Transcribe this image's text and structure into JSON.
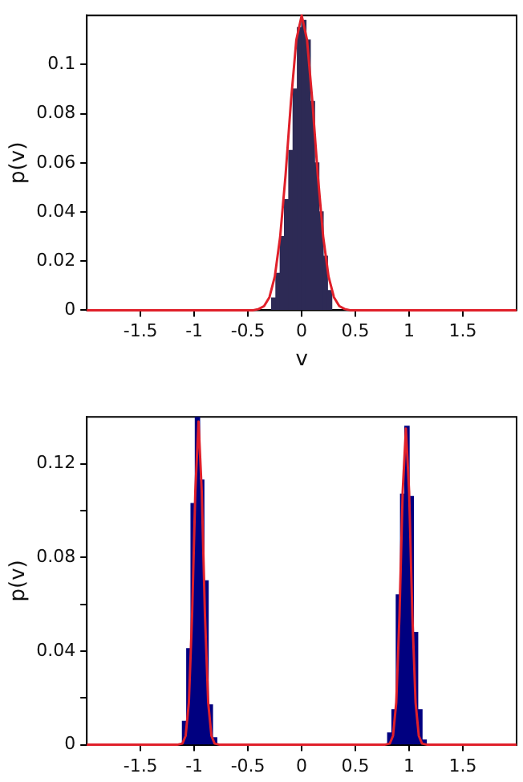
{
  "chart_data": [
    {
      "type": "histogram",
      "xlabel": "v",
      "ylabel": "p(v)",
      "xlim": [
        -2,
        2
      ],
      "ylim": [
        0,
        0.12
      ],
      "xticks": [
        -1.5,
        -1,
        -0.5,
        0,
        0.5,
        1,
        1.5
      ],
      "yticks": [
        0,
        0.02,
        0.04,
        0.06,
        0.08,
        0.1
      ],
      "series": [
        {
          "type": "histogram",
          "color": "#2d2a55",
          "bins": [
            -0.28,
            -0.24,
            -0.2,
            -0.16,
            -0.12,
            -0.08,
            -0.04,
            0,
            0.04,
            0.08,
            0.12,
            0.16,
            0.2,
            0.24,
            0.28
          ],
          "values": [
            0.005,
            0.015,
            0.03,
            0.045,
            0.065,
            0.09,
            0.115,
            0.118,
            0.11,
            0.085,
            0.06,
            0.04,
            0.022,
            0.008
          ]
        },
        {
          "type": "line",
          "color": "#e0202a",
          "x": [
            -2,
            -0.45,
            -0.4,
            -0.35,
            -0.3,
            -0.25,
            -0.2,
            -0.15,
            -0.1,
            -0.05,
            0,
            0.05,
            0.1,
            0.15,
            0.2,
            0.25,
            0.3,
            0.35,
            0.4,
            0.45,
            2
          ],
          "values": [
            0,
            0,
            0.0005,
            0.0017,
            0.0053,
            0.0137,
            0.03,
            0.055,
            0.0848,
            0.11,
            0.12,
            0.11,
            0.0848,
            0.055,
            0.03,
            0.0137,
            0.0053,
            0.0017,
            0.0005,
            0,
            0
          ]
        }
      ]
    },
    {
      "type": "histogram",
      "ylabel": "p(v)",
      "xlim": [
        -2,
        2
      ],
      "ylim": [
        0,
        0.14
      ],
      "xticks": [
        -1.5,
        -1,
        -0.5,
        0,
        0.5,
        1,
        1.5
      ],
      "yticks": [
        0,
        {
          "value": 0.02,
          "label": null
        },
        0.04,
        {
          "value": 0.06,
          "label": null
        },
        0.08,
        {
          "value": 0.1,
          "label": null
        },
        0.12
      ],
      "series": [
        {
          "type": "histogram",
          "color": "#000080",
          "bins": [
            -1.11,
            -1.07,
            -1.03,
            -0.99,
            -0.95,
            -0.91,
            -0.87,
            -0.83,
            -0.79
          ],
          "values": [
            0.01,
            0.041,
            0.103,
            0.14,
            0.113,
            0.07,
            0.017,
            0.003
          ]
        },
        {
          "type": "histogram",
          "color": "#000080",
          "bins": [
            0.8,
            0.84,
            0.88,
            0.92,
            0.96,
            1,
            1.04,
            1.08,
            1.12,
            1.16
          ],
          "values": [
            0.005,
            0.015,
            0.064,
            0.107,
            0.136,
            0.106,
            0.048,
            0.015,
            0.002
          ]
        },
        {
          "type": "line",
          "color": "#e0202a",
          "x": [
            -2,
            -1.16,
            -1.11,
            -1.08,
            -1.05,
            -1.02,
            -0.99,
            -0.96,
            -0.93,
            -0.9,
            -0.87,
            -0.84,
            -0.81,
            -0.76,
            0.77,
            0.82,
            0.85,
            0.88,
            0.91,
            0.94,
            0.97,
            1.0,
            1.03,
            1.06,
            1.09,
            1.12,
            1.17,
            2
          ],
          "values": [
            0,
            0,
            0.0005,
            0.0038,
            0.018,
            0.055,
            0.108,
            0.138,
            0.108,
            0.055,
            0.018,
            0.0038,
            0.0005,
            0,
            0,
            0.0005,
            0.0038,
            0.018,
            0.055,
            0.108,
            0.135,
            0.108,
            0.055,
            0.018,
            0.0038,
            0.0005,
            0,
            0
          ]
        }
      ]
    }
  ]
}
